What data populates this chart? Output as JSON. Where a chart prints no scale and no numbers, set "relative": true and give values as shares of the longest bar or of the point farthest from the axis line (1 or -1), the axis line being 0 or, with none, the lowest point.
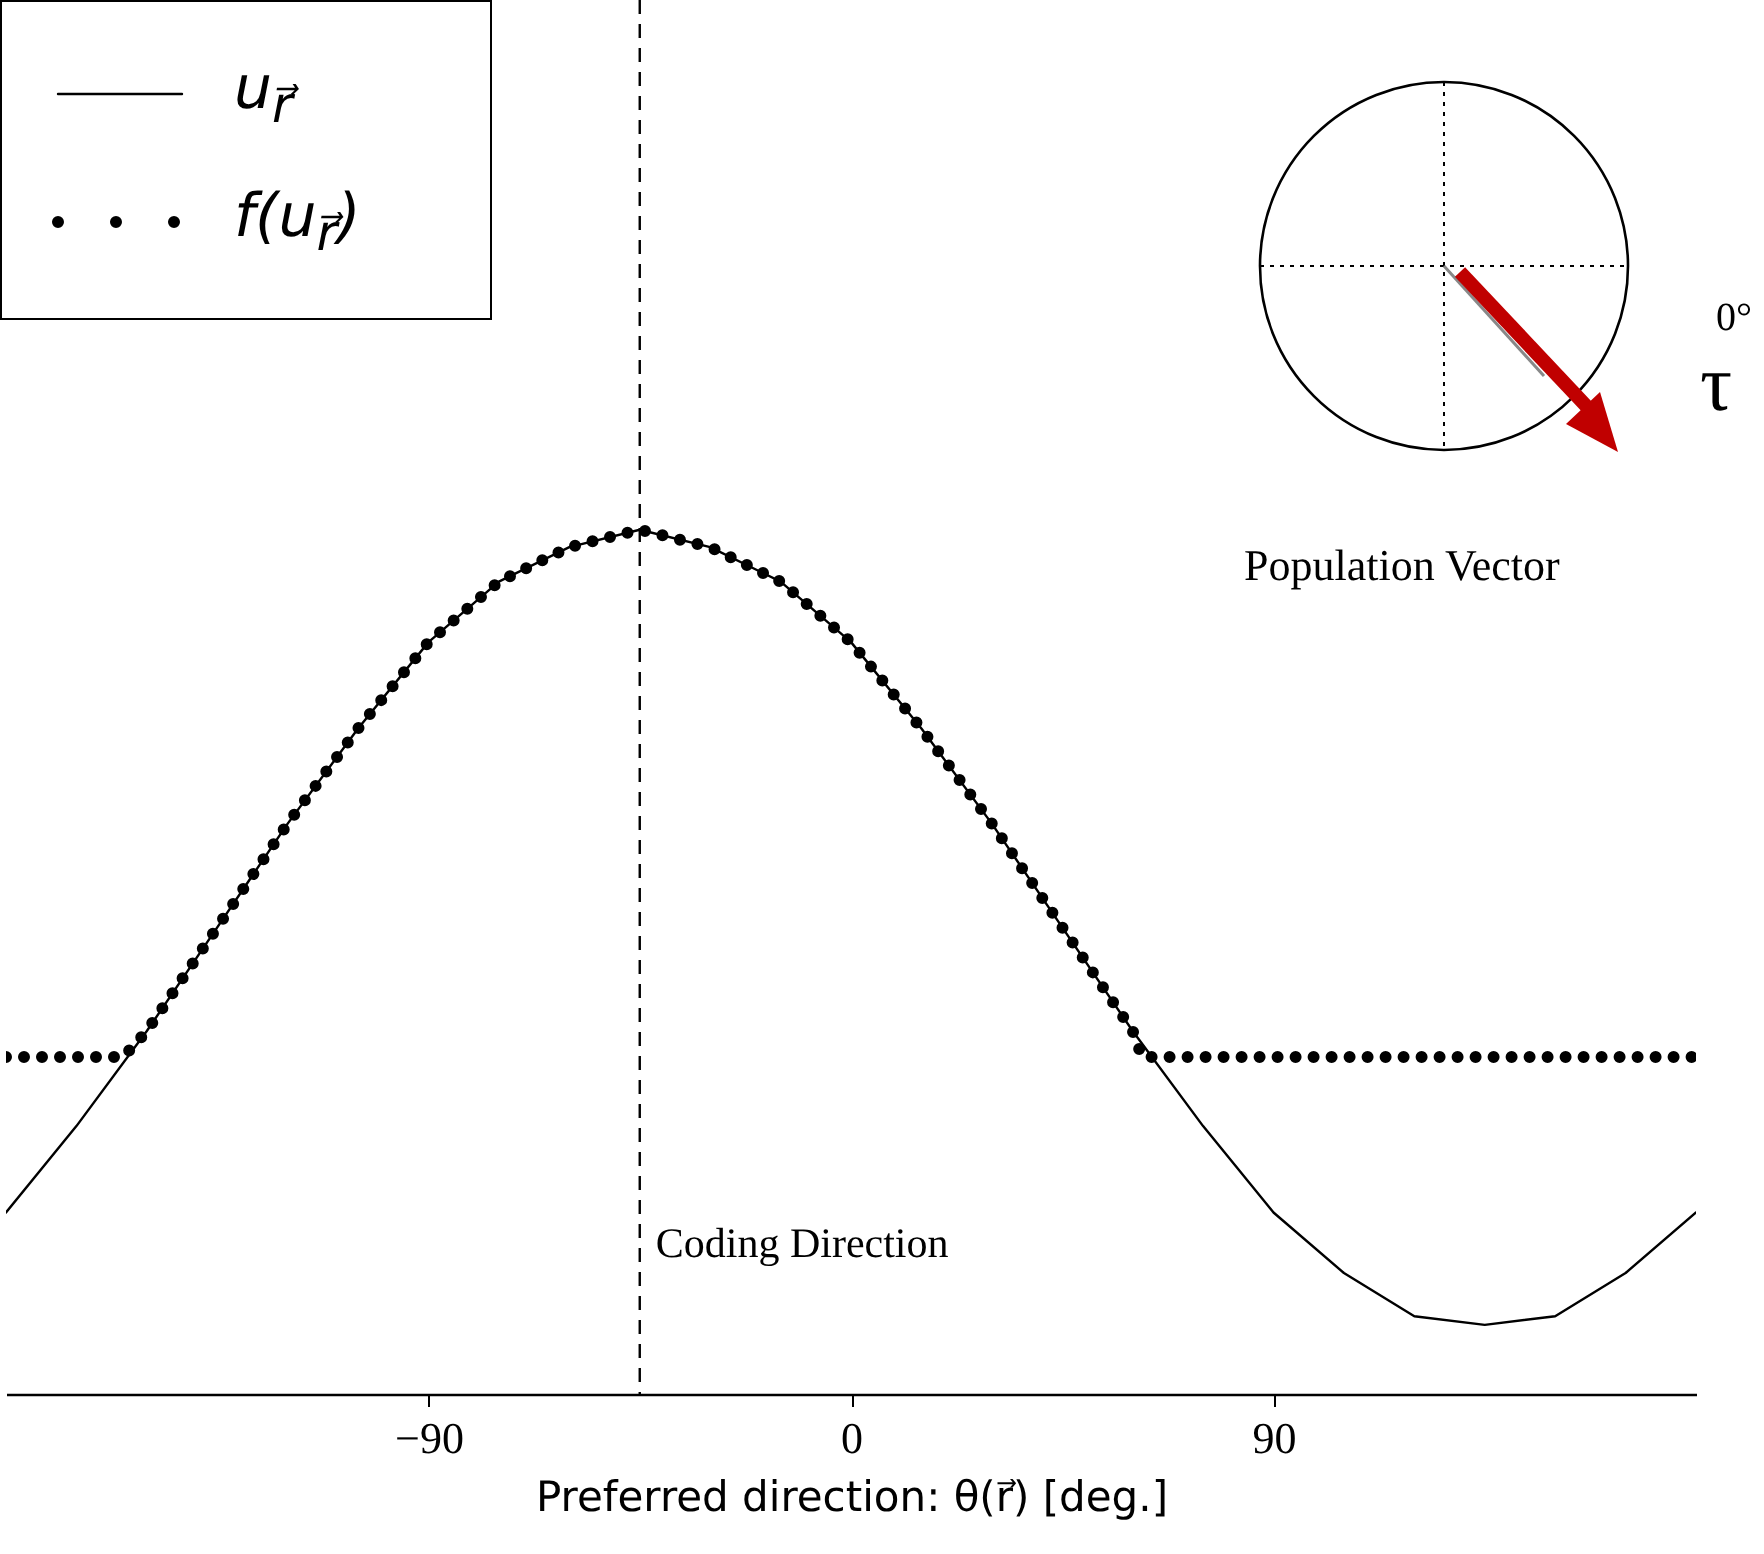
{
  "chart_data": {
    "type": "line",
    "relative": true,
    "xlabel": "Preferred direction:  θ(r⃗)  [deg.]",
    "xlim": [
      -180,
      180
    ],
    "xticks": [
      -90,
      0,
      90
    ],
    "legend": "top left",
    "marker": "none",
    "grid": false,
    "series": [
      {
        "name": "u$_{r⃗}$",
        "color": "#000000",
        "line_style": "solid",
        "x": [
          -180,
          -165,
          -150,
          -135,
          -120,
          -105,
          -90,
          -75,
          -60,
          -45,
          -30,
          -15,
          0,
          15,
          30,
          45,
          60,
          75,
          90,
          105,
          120,
          135,
          150,
          165,
          180
        ],
        "values": [
          0.21,
          0.31,
          0.42,
          0.54,
          0.66,
          0.77,
          0.87,
          0.94,
          0.98,
          1,
          0.98,
          0.94,
          0.87,
          0.77,
          0.66,
          0.54,
          0.42,
          0.31,
          0.21,
          0.14,
          0.09,
          0.08,
          0.09,
          0.14,
          0.21
        ]
      },
      {
        "name": "f(u$_{r⃗}$)",
        "color": "#000000",
        "line_style": "dotted",
        "x": [
          -180,
          -155,
          -150,
          -135,
          -120,
          -105,
          -90,
          -75,
          -60,
          -45,
          -30,
          -15,
          0,
          15,
          30,
          45,
          60,
          62,
          180
        ],
        "values": [
          0.39,
          0.39,
          0.42,
          0.54,
          0.66,
          0.77,
          0.87,
          0.94,
          0.98,
          1,
          0.98,
          0.94,
          0.87,
          0.77,
          0.66,
          0.54,
          0.42,
          0.39,
          0.39
        ]
      }
    ],
    "ref_lines": [
      {
        "axis": "x",
        "value": -45,
        "label": "Coding Direction",
        "line_style": "dashed",
        "color": "#000000"
      }
    ],
    "annotations": [
      "Population Vector",
      "0°",
      "τ"
    ]
  }
}
